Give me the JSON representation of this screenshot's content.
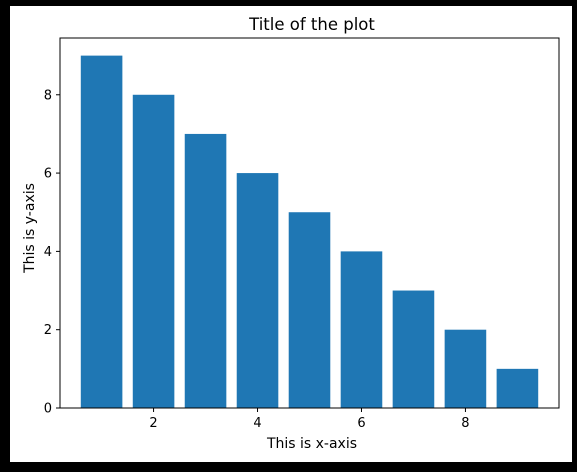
{
  "chart_data": {
    "type": "bar",
    "title": "Title of the plot",
    "xlabel": "This is x-axis",
    "ylabel": "This is y-axis",
    "x": [
      1,
      2,
      3,
      4,
      5,
      6,
      7,
      8,
      9
    ],
    "values": [
      9,
      8,
      7,
      6,
      5,
      4,
      3,
      2,
      1
    ],
    "bar_width": 0.8,
    "xlim": [
      0.2,
      9.8
    ],
    "ylim": [
      0,
      9.45
    ],
    "xticks": [
      2,
      4,
      6,
      8
    ],
    "yticks": [
      0,
      2,
      4,
      6,
      8
    ],
    "bar_color": "#1f77b4",
    "grid": false,
    "legend": "none"
  }
}
